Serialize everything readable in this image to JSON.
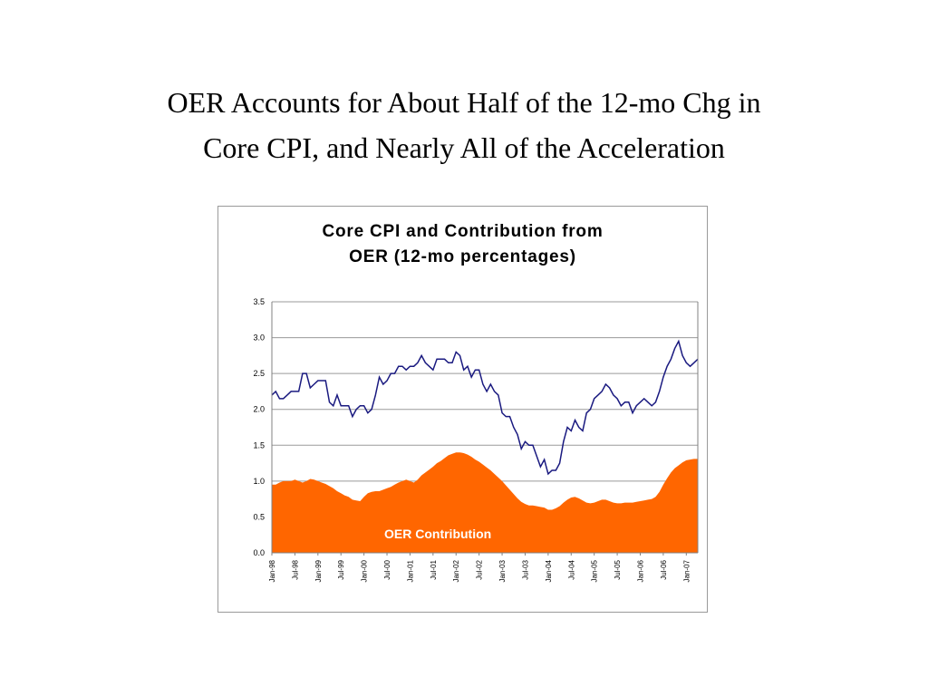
{
  "slide": {
    "title_line1": "OER Accounts for About Half of the 12-mo Chg in",
    "title_line2": "Core CPI, and Nearly All of the Acceleration"
  },
  "chart_data": {
    "type": "area",
    "title_line1": "Core CPI and Contribution from",
    "title_line2": "OER (12-mo percentages)",
    "ylim": [
      0,
      3.5
    ],
    "y_ticks": [
      "3.5",
      "3.0",
      "2.5",
      "2.0",
      "1.5",
      "1.0",
      "0.5",
      "0.0"
    ],
    "x_tick_labels": [
      "Jan-98",
      "Jul-98",
      "Jan-99",
      "Jul-99",
      "Jan-00",
      "Jul-00",
      "Jan-01",
      "Jul-01",
      "Jan-02",
      "Jul-02",
      "Jan-03",
      "Jul-03",
      "Jan-04",
      "Jul-04",
      "Jan-05",
      "Jul-05",
      "Jan-06",
      "Jul-06",
      "Jan-07"
    ],
    "x_start": "Jan-98",
    "x_end": "Feb-07",
    "grid": true,
    "annotation": "OER Contribution",
    "colors": {
      "core_cpi_line": "#1a1a80",
      "oer_area": "#ff6600",
      "grid": "#9a9a9a"
    },
    "series": [
      {
        "name": "",
        "kind": "line",
        "values": [
          2.2,
          2.25,
          2.15,
          2.15,
          2.2,
          2.25,
          2.25,
          2.25,
          2.5,
          2.5,
          2.3,
          2.35,
          2.4,
          2.4,
          2.4,
          2.1,
          2.05,
          2.2,
          2.05,
          2.05,
          2.05,
          1.9,
          2.0,
          2.05,
          2.05,
          1.95,
          2.0,
          2.2,
          2.45,
          2.35,
          2.4,
          2.5,
          2.5,
          2.6,
          2.6,
          2.55,
          2.6,
          2.6,
          2.65,
          2.75,
          2.65,
          2.6,
          2.55,
          2.7,
          2.7,
          2.7,
          2.65,
          2.65,
          2.8,
          2.75,
          2.55,
          2.6,
          2.45,
          2.55,
          2.55,
          2.35,
          2.25,
          2.35,
          2.25,
          2.2,
          1.95,
          1.9,
          1.9,
          1.75,
          1.65,
          1.45,
          1.55,
          1.5,
          1.5,
          1.35,
          1.2,
          1.3,
          1.1,
          1.15,
          1.15,
          1.25,
          1.55,
          1.75,
          1.7,
          1.85,
          1.75,
          1.7,
          1.95,
          2.0,
          2.15,
          2.2,
          2.25,
          2.35,
          2.3,
          2.2,
          2.15,
          2.05,
          2.1,
          2.1,
          1.95,
          2.05,
          2.1,
          2.15,
          2.1,
          2.05,
          2.1,
          2.25,
          2.45,
          2.6,
          2.7,
          2.85,
          2.95,
          2.75,
          2.65,
          2.6,
          2.65,
          2.7
        ]
      },
      {
        "name": "OER Contribution",
        "kind": "area",
        "values": [
          0.95,
          0.95,
          0.98,
          1.0,
          1.0,
          1.0,
          1.02,
          1.0,
          0.98,
          1.0,
          1.03,
          1.02,
          1.0,
          0.98,
          0.96,
          0.93,
          0.9,
          0.86,
          0.83,
          0.8,
          0.78,
          0.74,
          0.73,
          0.72,
          0.78,
          0.83,
          0.85,
          0.86,
          0.86,
          0.88,
          0.9,
          0.92,
          0.95,
          0.98,
          1.0,
          1.02,
          1.0,
          0.98,
          1.02,
          1.08,
          1.12,
          1.16,
          1.2,
          1.25,
          1.28,
          1.32,
          1.36,
          1.38,
          1.4,
          1.4,
          1.39,
          1.37,
          1.34,
          1.3,
          1.27,
          1.23,
          1.19,
          1.15,
          1.1,
          1.05,
          1.0,
          0.94,
          0.88,
          0.82,
          0.76,
          0.71,
          0.68,
          0.66,
          0.66,
          0.65,
          0.64,
          0.63,
          0.6,
          0.6,
          0.62,
          0.65,
          0.7,
          0.74,
          0.77,
          0.78,
          0.76,
          0.73,
          0.7,
          0.69,
          0.7,
          0.72,
          0.74,
          0.74,
          0.72,
          0.7,
          0.69,
          0.69,
          0.7,
          0.7,
          0.7,
          0.71,
          0.72,
          0.73,
          0.74,
          0.75,
          0.78,
          0.85,
          0.95,
          1.04,
          1.12,
          1.18,
          1.22,
          1.26,
          1.29,
          1.3,
          1.31,
          1.31
        ]
      }
    ]
  }
}
